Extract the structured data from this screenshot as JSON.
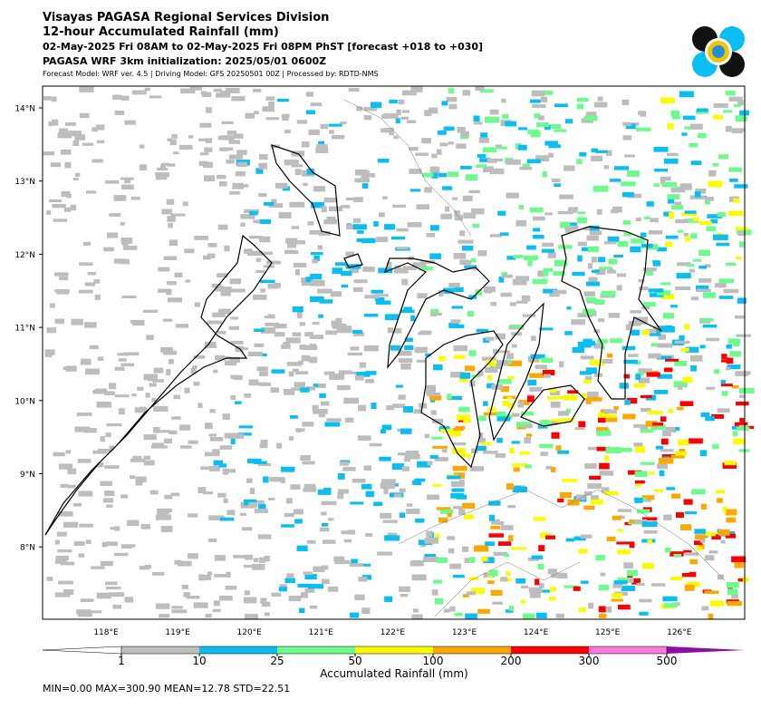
{
  "header": {
    "title": "Visayas PAGASA Regional Services Division",
    "subtitle": "12-hour Accumulated Rainfall (mm)",
    "period": "02-May-2025 Fri 08AM to 02-May-2025 Fri 08PM PhST [forecast +018 to +030]",
    "init": "PAGASA WRF 3km initialization: 2025/05/01 0600Z",
    "model": "Forecast Model: WRF ver. 4.5 | Driving Model: GFS 20250501 00Z | Processed by: RDTD-NMS"
  },
  "map": {
    "lat_labels": [
      "14°N",
      "13°N",
      "12°N",
      "11°N",
      "10°N",
      "9°N",
      "8°N"
    ],
    "lon_labels": [
      "118°E",
      "119°E",
      "120°E",
      "121°E",
      "122°E",
      "123°E",
      "124°E",
      "125°E",
      "126°E"
    ]
  },
  "colorbar": {
    "label": "Accumulated Rainfall (mm)",
    "ticks": [
      "1",
      "10",
      "25",
      "50",
      "100",
      "200",
      "300",
      "500"
    ],
    "colors": [
      "#ffffff",
      "#bdbdbd",
      "#0bbef2",
      "#6cfc8c",
      "#fcfc00",
      "#fca800",
      "#fc0000",
      "#fc78dc",
      "#8c0ca8"
    ]
  },
  "stats": "MIN=0.00   MAX=300.90   MEAN=12.78   STD=22.51"
}
